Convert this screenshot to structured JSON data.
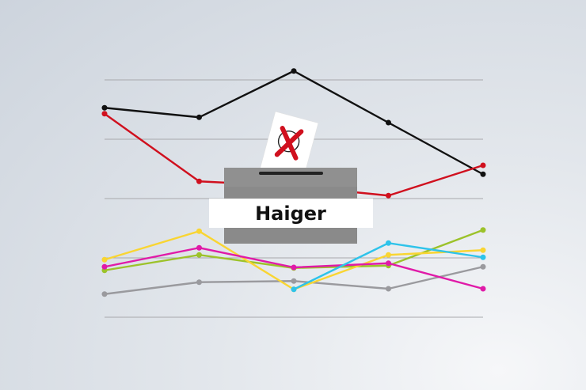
{
  "chart_data": {
    "type": "line",
    "title": "",
    "xlabel": "",
    "ylabel": "",
    "x": [
      1,
      2,
      3,
      4,
      5
    ],
    "ylim": [
      0,
      4
    ],
    "grid": true,
    "gridlines": [
      0,
      1,
      2,
      3,
      4
    ],
    "legend": "none",
    "series": [
      {
        "color": "#111111",
        "values": [
          3.53,
          3.37,
          4.15,
          3.28,
          2.41
        ]
      },
      {
        "color": "#d0101e",
        "values": [
          3.43,
          2.29,
          2.21,
          2.05,
          2.56
        ]
      },
      {
        "color": "#9a9a9e",
        "values": [
          0.39,
          0.59,
          0.61,
          0.48,
          0.85
        ]
      },
      {
        "color": "#9cc22a",
        "values": [
          0.79,
          1.05,
          0.83,
          0.87,
          1.47
        ]
      },
      {
        "color": "#f9d532",
        "values": [
          0.97,
          1.45,
          0.47,
          1.05,
          1.13
        ]
      },
      {
        "color": "#e01aa8",
        "values": [
          0.85,
          1.17,
          0.84,
          0.91,
          0.48
        ]
      },
      {
        "color": "#2ec3ea",
        "values": [
          null,
          null,
          0.47,
          1.25,
          1.01
        ]
      }
    ]
  },
  "ballot_box": {
    "label": "Haiger",
    "body_color": "#8c8c8c",
    "mark_color": "#d0101e"
  }
}
